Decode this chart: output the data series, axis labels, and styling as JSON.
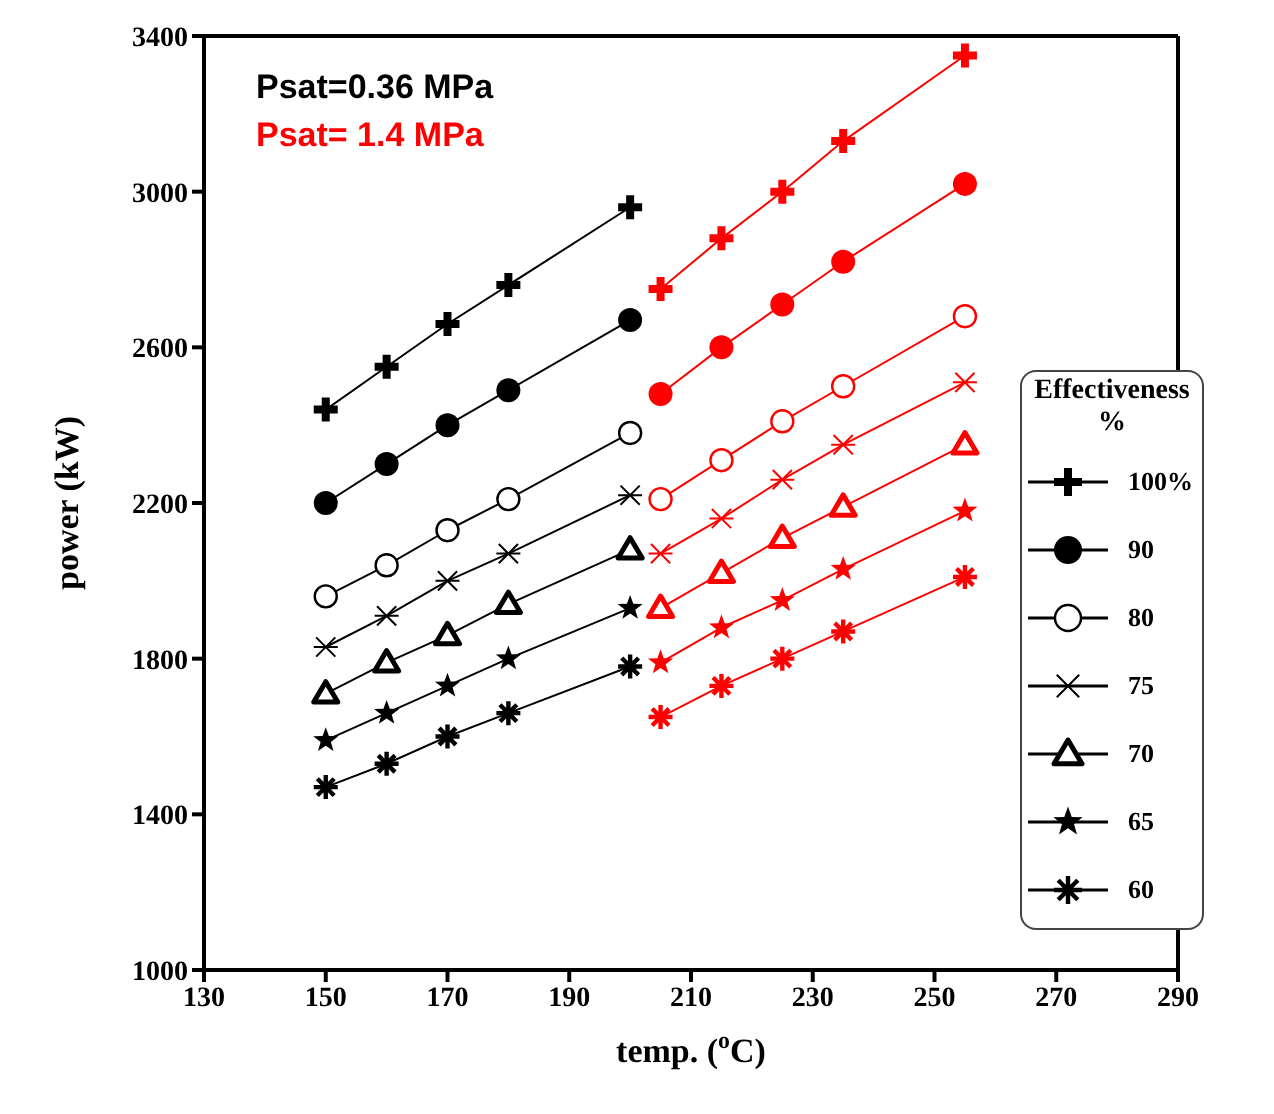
{
  "chart_data": {
    "type": "line",
    "xlabel": "temp. ($^{o}$C)",
    "ylabel": "power (kW)",
    "legend_title": "Effectiveness %",
    "legend": "right",
    "annotations": [
      "Psat=0.36 MPa",
      "Psat= 1.4 MPa"
    ],
    "xlim": [
      130,
      290
    ],
    "xticks": [
      130,
      150,
      170,
      190,
      210,
      230,
      250,
      270,
      290
    ],
    "ylim": [
      1000,
      3400
    ],
    "yticks": [
      1000,
      1400,
      1800,
      2200,
      2600,
      3000,
      3400
    ],
    "series": [
      {
        "name": "100%",
        "color": "#000000",
        "marker": "cross",
        "x": [
          150,
          160,
          170,
          180,
          200
        ],
        "values": [
          2440,
          2550,
          2660,
          2760,
          2960
        ]
      },
      {
        "name": "90",
        "color": "#000000",
        "marker": "circle",
        "x": [
          150,
          160,
          170,
          180,
          200
        ],
        "values": [
          2200,
          2300,
          2400,
          2490,
          2670
        ]
      },
      {
        "name": "80",
        "color": "#000000",
        "marker": "circle-open",
        "x": [
          150,
          160,
          170,
          180,
          200
        ],
        "values": [
          1960,
          2040,
          2130,
          2210,
          2380
        ]
      },
      {
        "name": "75",
        "color": "#000000",
        "marker": "cross-thin",
        "x": [
          150,
          160,
          170,
          180,
          200
        ],
        "values": [
          1830,
          1910,
          2000,
          2070,
          2220
        ]
      },
      {
        "name": "70",
        "color": "#000000",
        "marker": "triangle-open",
        "x": [
          150,
          160,
          170,
          180,
          200
        ],
        "values": [
          1710,
          1790,
          1860,
          1940,
          2080
        ]
      },
      {
        "name": "65",
        "color": "#000000",
        "marker": "star",
        "x": [
          150,
          160,
          170,
          180,
          200
        ],
        "values": [
          1590,
          1660,
          1730,
          1800,
          1930
        ]
      },
      {
        "name": "60",
        "color": "#000000",
        "marker": "cross-burst",
        "x": [
          150,
          160,
          170,
          180,
          200
        ],
        "values": [
          1470,
          1530,
          1600,
          1660,
          1780
        ]
      },
      {
        "color": "#ff0000",
        "marker": "cross",
        "x": [
          205,
          215,
          225,
          235,
          255
        ],
        "values": [
          2750,
          2880,
          3000,
          3130,
          3350
        ]
      },
      {
        "color": "#ff0000",
        "marker": "circle",
        "x": [
          205,
          215,
          225,
          235,
          255
        ],
        "values": [
          2480,
          2600,
          2710,
          2820,
          3020
        ]
      },
      {
        "color": "#ff0000",
        "marker": "circle-open",
        "x": [
          205,
          215,
          225,
          235,
          255
        ],
        "values": [
          2210,
          2310,
          2410,
          2500,
          2680
        ]
      },
      {
        "color": "#ff0000",
        "marker": "cross-thin",
        "x": [
          205,
          215,
          225,
          235,
          255
        ],
        "values": [
          2070,
          2160,
          2260,
          2350,
          2510
        ]
      },
      {
        "color": "#ff0000",
        "marker": "triangle-open",
        "x": [
          205,
          215,
          225,
          235,
          255
        ],
        "values": [
          1930,
          2020,
          2110,
          2190,
          2350
        ]
      },
      {
        "color": "#ff0000",
        "marker": "star",
        "x": [
          205,
          215,
          225,
          235,
          255
        ],
        "values": [
          1790,
          1880,
          1950,
          2030,
          2180
        ]
      },
      {
        "color": "#ff0000",
        "marker": "cross-burst",
        "x": [
          205,
          215,
          225,
          235,
          255
        ],
        "values": [
          1650,
          1730,
          1800,
          1870,
          2010
        ]
      }
    ]
  }
}
